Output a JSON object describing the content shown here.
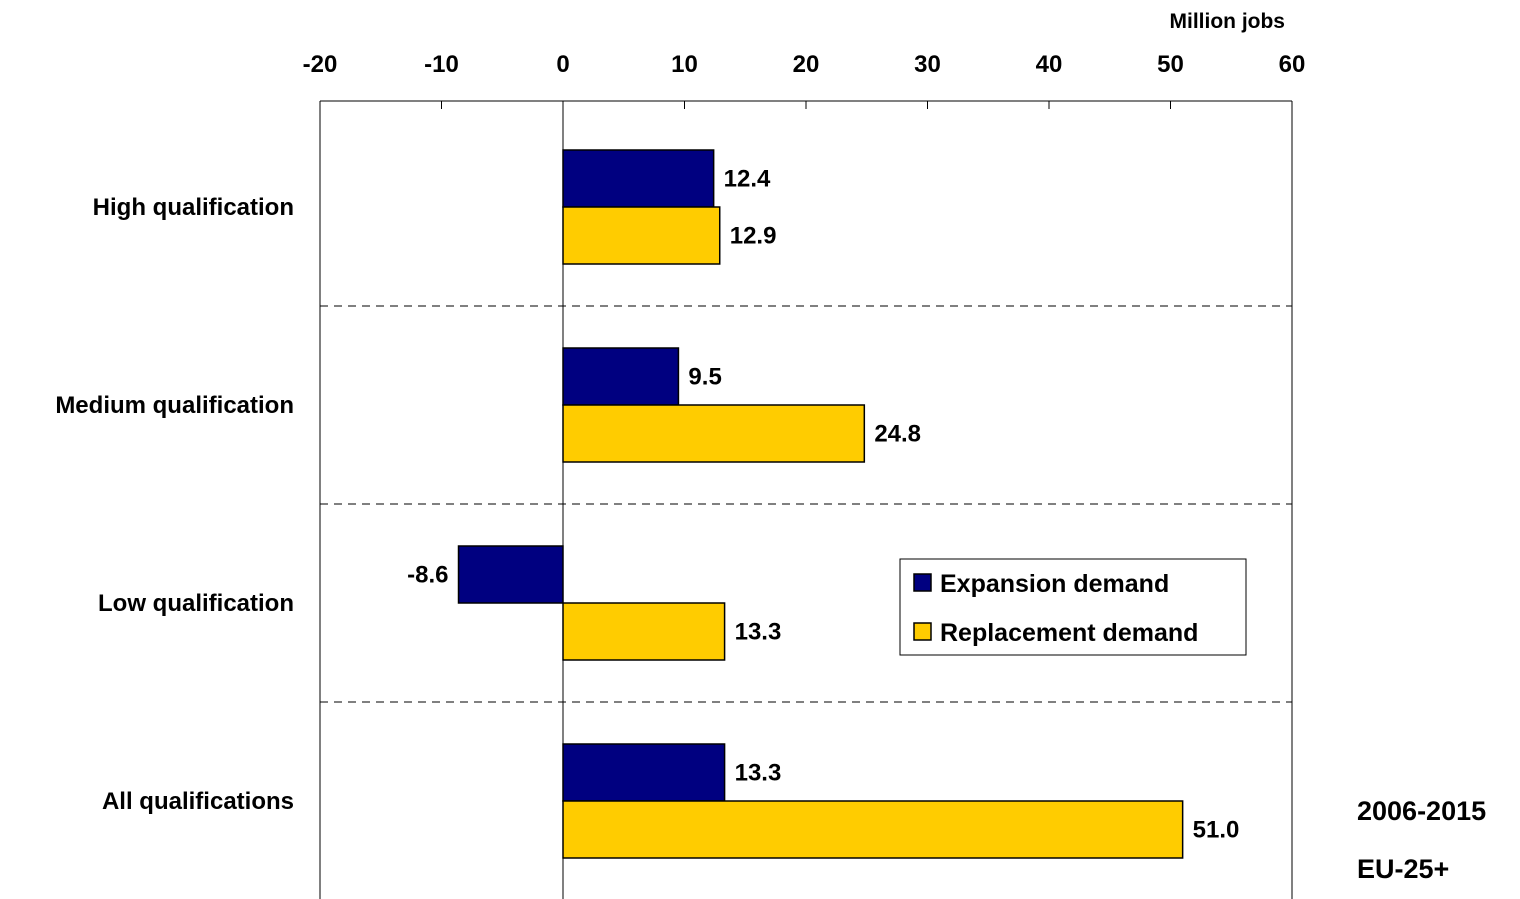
{
  "chart_data": {
    "type": "bar",
    "orientation": "horizontal",
    "categories": [
      "High qualification",
      "Medium qualification",
      "Low qualification",
      "All qualifications"
    ],
    "series": [
      {
        "name": "Expansion demand",
        "values": [
          12.4,
          9.5,
          -8.6,
          13.3
        ],
        "labels": [
          "12.4",
          "9.5",
          "-8.6",
          "13.3"
        ],
        "color": "#000080"
      },
      {
        "name": "Replacement demand",
        "values": [
          12.9,
          24.8,
          13.3,
          51.0
        ],
        "labels": [
          "12.9",
          "24.8",
          "13.3",
          "51.0"
        ],
        "color": "#FFCC00"
      }
    ],
    "x_ticks": [
      "-20",
      "-10",
      "0",
      "10",
      "20",
      "30",
      "40",
      "50",
      "60"
    ],
    "xlim": [
      -20,
      60
    ],
    "axis_unit": "Million jobs",
    "period": "2006-2015",
    "region": "EU-25+",
    "legend_position": "right-middle",
    "grid": "dashed horizontal separators between categories"
  }
}
